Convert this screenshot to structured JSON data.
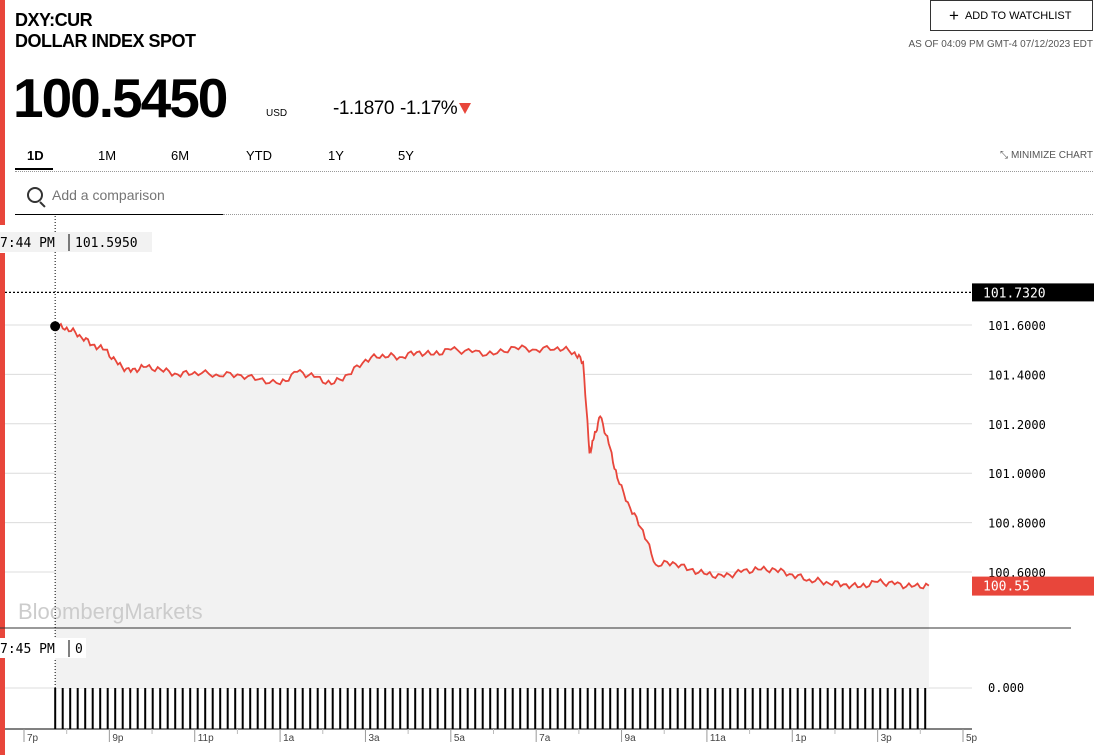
{
  "header": {
    "ticker": "DXY:CUR",
    "name": "DOLLAR INDEX SPOT",
    "price": "100.5450",
    "currency": "USD",
    "change": "-1.1870",
    "change_pct": "-1.17%",
    "watchlist_label": "ADD TO WATCHLIST",
    "as_of": "AS OF 04:09 PM GMT-4 07/12/2023 EDT"
  },
  "tabs": [
    "1D",
    "1M",
    "6M",
    "YTD",
    "1Y",
    "5Y"
  ],
  "active_tab": "1D",
  "minimize_label": "MINIMIZE CHART",
  "search": {
    "placeholder": "Add a comparison",
    "value": ""
  },
  "colors": {
    "accent": "#e8463b",
    "fill": "#f2f2f2"
  },
  "icons": [
    "plus-icon",
    "down-triangle-icon",
    "search-icon",
    "minimize-icon"
  ],
  "chart_data": {
    "type": "line",
    "title": "",
    "xlabel": "",
    "ylabel": "",
    "watermark": "BloombergMarkets",
    "ylim": [
      100.45,
      101.7
    ],
    "ytick_labels": [
      "101.6000",
      "101.4000",
      "101.2000",
      "101.0000",
      "100.8000",
      "100.6000"
    ],
    "yticks": [
      101.6,
      101.4,
      101.2,
      101.0,
      100.8,
      100.6
    ],
    "xtick_labels": [
      "7p",
      "9p",
      "11p",
      "1a",
      "3a",
      "5a",
      "7a",
      "9a",
      "11a",
      "1p",
      "3p",
      "5p"
    ],
    "xtick_hours": [
      19,
      21,
      23,
      25,
      27,
      29,
      31,
      33,
      35,
      37,
      39,
      41
    ],
    "xlim_hours": [
      19,
      42
    ],
    "high_label": "101.7320",
    "high_value": 101.732,
    "last_label": "100.55",
    "last_value": 100.545,
    "crosshair_time_label": "7:44 PM",
    "crosshair_value_label": "101.5950",
    "volume_time_label": "7:45 PM",
    "volume_value_label": "0",
    "volume_tick_label": "0.000",
    "series": [
      {
        "x": [
          19.73,
          20.0,
          20.3,
          20.6,
          20.9,
          21.2,
          21.5,
          21.8,
          22.2,
          22.6,
          23.0,
          23.5,
          24.0,
          24.5,
          25.0,
          25.4,
          25.8,
          26.2,
          26.6,
          27.0,
          27.4,
          27.8,
          28.2,
          28.6,
          29.0,
          29.5,
          30.0,
          30.5,
          31.0,
          31.5,
          31.9,
          32.1,
          32.25,
          32.35,
          32.5,
          32.7,
          32.9,
          33.2,
          33.5,
          33.8,
          34.2,
          34.6,
          35.0,
          35.4,
          35.8,
          36.2,
          36.6,
          37.0,
          37.4,
          37.8,
          38.2,
          38.6,
          39.0,
          39.4,
          39.8,
          40.2
        ],
        "y": [
          101.595,
          101.59,
          101.56,
          101.52,
          101.5,
          101.44,
          101.41,
          101.43,
          101.42,
          101.4,
          101.41,
          101.4,
          101.4,
          101.38,
          101.36,
          101.41,
          101.39,
          101.36,
          101.4,
          101.46,
          101.48,
          101.47,
          101.49,
          101.48,
          101.5,
          101.49,
          101.48,
          101.51,
          101.5,
          101.51,
          101.49,
          101.45,
          101.08,
          101.14,
          101.23,
          101.12,
          100.98,
          100.86,
          100.77,
          100.63,
          100.64,
          100.61,
          100.59,
          100.58,
          100.6,
          100.61,
          100.61,
          100.59,
          100.57,
          100.56,
          100.55,
          100.54,
          100.56,
          100.55,
          100.54,
          100.545
        ]
      }
    ]
  }
}
